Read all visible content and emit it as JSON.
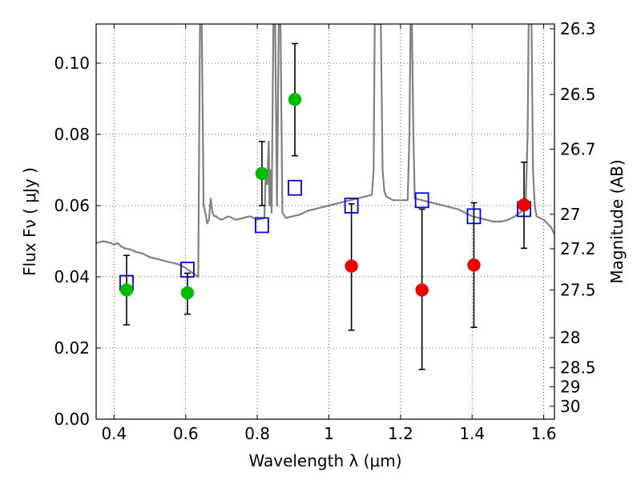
{
  "chart_data": {
    "type": "scatter",
    "xlabel": "Wavelength  λ (μm)",
    "ylabel": "Flux  Fν  ( μJy )",
    "y2label": "Magnitude (AB)",
    "xlim": [
      0.35,
      1.63
    ],
    "ylim": [
      0.0,
      0.111
    ],
    "grid": true,
    "x_ticks": [
      0.4,
      0.6,
      0.8,
      1.0,
      1.2,
      1.4,
      1.6
    ],
    "x_tick_labels": [
      "0.4",
      "0.6",
      "0.8",
      "1",
      "1.2",
      "1.4",
      "1.6"
    ],
    "y_ticks": [
      0.0,
      0.02,
      0.04,
      0.06,
      0.08,
      0.1
    ],
    "y_tick_labels": [
      "0.00",
      "0.02",
      "0.04",
      "0.06",
      "0.08",
      "0.10"
    ],
    "mag_ticks": [
      26.3,
      26.5,
      26.7,
      27,
      27.2,
      27.5,
      28,
      28.5,
      29,
      30
    ],
    "mag_tick_labels": [
      "26.3",
      "26.5",
      "26.7",
      "27",
      "27.2",
      "27.5",
      "28",
      "28.5",
      "29",
      "30"
    ],
    "series": [
      {
        "style": "line",
        "color": "#808080",
        "x": [
          0.35,
          0.37,
          0.39,
          0.4,
          0.41,
          0.42,
          0.43,
          0.44,
          0.45,
          0.46,
          0.47,
          0.48,
          0.49,
          0.5,
          0.52,
          0.54,
          0.56,
          0.58,
          0.6,
          0.62,
          0.635,
          0.64,
          0.645,
          0.65,
          0.655,
          0.66,
          0.665,
          0.67,
          0.675,
          0.68,
          0.685,
          0.69,
          0.7,
          0.72,
          0.74,
          0.76,
          0.78,
          0.8,
          0.82,
          0.824,
          0.828,
          0.832,
          0.834,
          0.836,
          0.84,
          0.845,
          0.85,
          0.855,
          0.86,
          0.865,
          0.87,
          0.88,
          0.9,
          0.92,
          0.94,
          0.96,
          0.98,
          1.0,
          1.02,
          1.04,
          1.06,
          1.08,
          1.1,
          1.12,
          1.125,
          1.128,
          1.131,
          1.135,
          1.14,
          1.145,
          1.15,
          1.155,
          1.16,
          1.18,
          1.2,
          1.22,
          1.225,
          1.228,
          1.232,
          1.236,
          1.24,
          1.26,
          1.28,
          1.3,
          1.32,
          1.34,
          1.36,
          1.38,
          1.4,
          1.42,
          1.44,
          1.46,
          1.48,
          1.5,
          1.52,
          1.54,
          1.55,
          1.555,
          1.558,
          1.562,
          1.566,
          1.57,
          1.575,
          1.58,
          1.6,
          1.62,
          1.63
        ],
        "y": [
          0.0495,
          0.05,
          0.0495,
          0.049,
          0.0495,
          0.0485,
          0.048,
          0.0478,
          0.0475,
          0.047,
          0.0468,
          0.0465,
          0.046,
          0.0455,
          0.045,
          0.0445,
          0.044,
          0.0435,
          0.0425,
          0.041,
          0.04,
          0.111,
          0.111,
          0.06,
          0.058,
          0.055,
          0.056,
          0.062,
          0.058,
          0.057,
          0.057,
          0.0565,
          0.056,
          0.057,
          0.056,
          0.0565,
          0.057,
          0.056,
          0.0565,
          0.07,
          0.066,
          0.078,
          0.06,
          0.07,
          0.058,
          0.111,
          0.111,
          0.06,
          0.111,
          0.111,
          0.058,
          0.0565,
          0.057,
          0.0575,
          0.0585,
          0.059,
          0.0595,
          0.06,
          0.0605,
          0.061,
          0.0615,
          0.062,
          0.0625,
          0.063,
          0.07,
          0.111,
          0.111,
          0.111,
          0.111,
          0.111,
          0.07,
          0.064,
          0.0625,
          0.0615,
          0.0615,
          0.0615,
          0.08,
          0.111,
          0.111,
          0.08,
          0.062,
          0.0615,
          0.061,
          0.0605,
          0.06,
          0.0595,
          0.059,
          0.058,
          0.057,
          0.0565,
          0.056,
          0.0555,
          0.0555,
          0.056,
          0.057,
          0.0585,
          0.062,
          0.08,
          0.111,
          0.111,
          0.111,
          0.07,
          0.06,
          0.057,
          0.056,
          0.054,
          0.052
        ]
      },
      {
        "style": "open-square",
        "color": "#0000dd",
        "x": [
          0.435,
          0.605,
          0.813,
          0.905,
          1.063,
          1.26,
          1.405,
          1.545
        ],
        "y": [
          0.0383,
          0.042,
          0.0545,
          0.065,
          0.06,
          0.0615,
          0.057,
          0.059
        ]
      },
      {
        "style": "filled-circle",
        "color": "#00bb00",
        "x": [
          0.435,
          0.605,
          0.813,
          0.905
        ],
        "y": [
          0.0363,
          0.0355,
          0.069,
          0.0898
        ],
        "err_low": [
          0.0265,
          0.0295,
          0.06,
          0.074
        ],
        "err_high": [
          0.046,
          0.041,
          0.078,
          0.1055
        ]
      },
      {
        "style": "filled-circle",
        "color": "#ee0000",
        "x": [
          1.063,
          1.26,
          1.405,
          1.545
        ],
        "y": [
          0.043,
          0.0363,
          0.0433,
          0.0602
        ],
        "err_low": [
          0.025,
          0.014,
          0.0258,
          0.048
        ],
        "err_high": [
          0.0605,
          0.059,
          0.0608,
          0.0722
        ]
      }
    ]
  }
}
